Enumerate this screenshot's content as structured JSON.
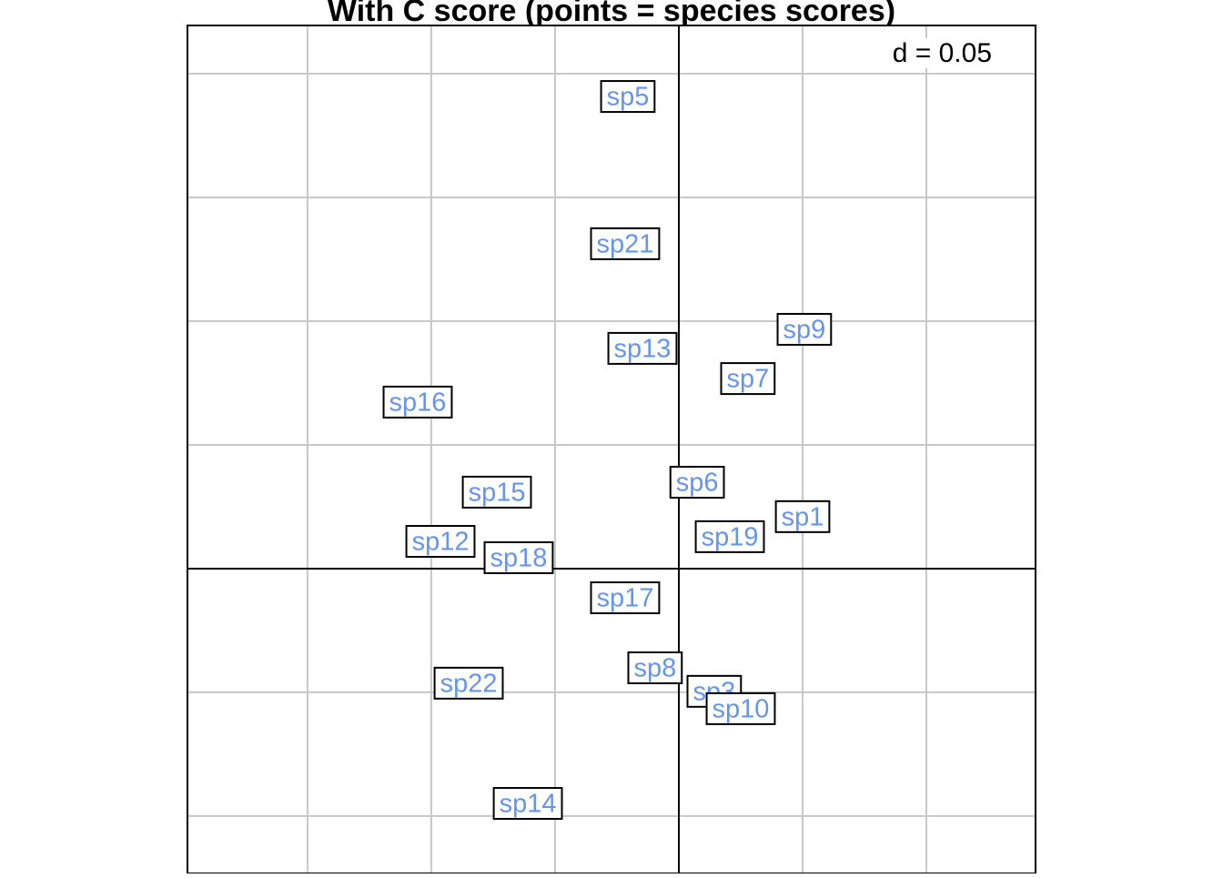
{
  "chart_data": {
    "type": "scatter",
    "title": "With C score (points = species scores)",
    "scale_label": "d = 0.05",
    "labels": [
      "sp5",
      "sp21",
      "sp13",
      "sp9",
      "sp7",
      "sp16",
      "sp15",
      "sp6",
      "sp1",
      "sp19",
      "sp12",
      "sp18",
      "sp17",
      "sp8",
      "sp22",
      "sp3",
      "sp10",
      "sp14"
    ],
    "x": [
      -0.0206,
      -0.0217,
      -0.0147,
      0.0507,
      0.0279,
      -0.1055,
      -0.0735,
      0.0074,
      0.05,
      0.0206,
      -0.0963,
      -0.0647,
      -0.0217,
      -0.0096,
      -0.0849,
      0.0143,
      0.025,
      -0.061
    ],
    "values": [
      0.1908,
      0.1313,
      0.089,
      0.0967,
      0.0768,
      0.0673,
      0.0309,
      0.0349,
      0.021,
      0.0129,
      0.011,
      0.0044,
      -0.0118,
      -0.0401,
      -0.0463,
      -0.0496,
      -0.0566,
      -0.0949
    ],
    "color": "#6495ed",
    "xlim": [
      -0.1985,
      0.1441
    ],
    "ylim": [
      -0.1232,
      0.2195
    ],
    "xticks": [
      -0.15,
      -0.1,
      -0.05,
      0,
      0.05,
      0.1
    ],
    "yticks": [
      -0.1,
      -0.05,
      0,
      0.05,
      0.1,
      0.15,
      0.2
    ],
    "grid": true
  }
}
